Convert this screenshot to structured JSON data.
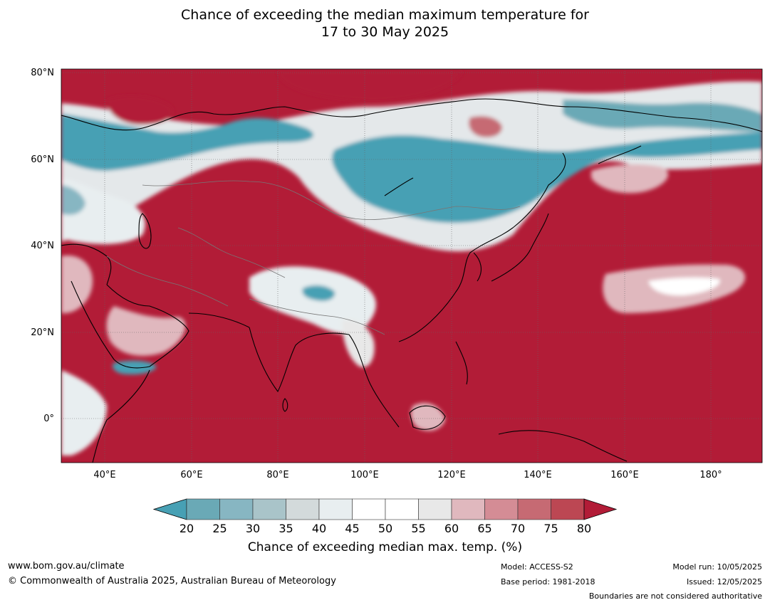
{
  "title_line1": "Chance of exceeding the median maximum temperature for",
  "title_line2": "17 to 30 May 2025",
  "lat_labels": [
    "80°N",
    "60°N",
    "40°N",
    "20°N",
    "0°"
  ],
  "lon_labels": [
    "40°E",
    "60°E",
    "80°E",
    "100°E",
    "120°E",
    "140°E",
    "160°E",
    "180°"
  ],
  "colorbar": {
    "ticks": [
      "20",
      "25",
      "30",
      "35",
      "40",
      "45",
      "50",
      "55",
      "60",
      "65",
      "70",
      "75",
      "80"
    ],
    "colors": [
      "#47a0b4",
      "#6aa9b6",
      "#87b6c2",
      "#a9c4c9",
      "#d3dadb",
      "#e8eef0",
      "#ffffff",
      "#ffffff",
      "#e8e8e8",
      "#e0b8be",
      "#d48c95",
      "#c66a73",
      "#bc4753",
      "#b21c37"
    ],
    "label": "Chance of exceeding median max. temp. (%)"
  },
  "colors": {
    "above": "#b21c37",
    "below": "#47a0b4",
    "neutral": "#ffffff"
  },
  "footer": {
    "url": "www.bom.gov.au/climate",
    "copyright": "© Commonwealth of Australia 2025, Australian Bureau of Meteorology",
    "model": "Model: ACCESS-S2",
    "base_period": "Base period: 1981-2018",
    "model_run": "Model run: 10/05/2025",
    "issued": "Issued: 12/05/2025",
    "disclaimer": "Boundaries are not considered authoritative"
  }
}
